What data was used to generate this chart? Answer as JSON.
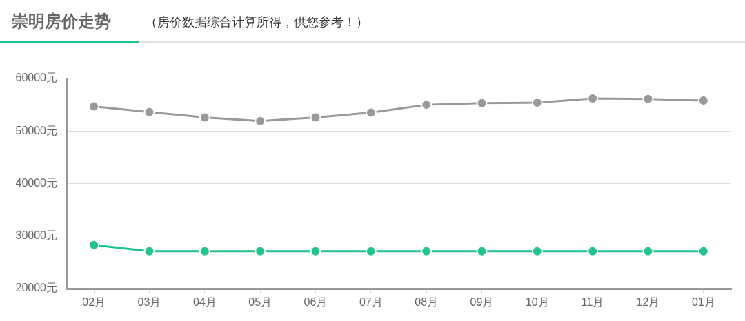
{
  "chart_data": {
    "type": "line",
    "title": "崇明房价走势",
    "subtitle": "（房价数据综合计算所得，供您参考！）",
    "categories": [
      "02月",
      "03月",
      "04月",
      "05月",
      "06月",
      "07月",
      "08月",
      "09月",
      "10月",
      "11月",
      "12月",
      "01月"
    ],
    "series": [
      {
        "color": "#999999",
        "values": [
          54700,
          53600,
          52600,
          51900,
          52600,
          53500,
          55000,
          55300,
          55400,
          56200,
          56100,
          55800
        ]
      },
      {
        "color": "#22c38e",
        "values": [
          28300,
          27100,
          27100,
          27100,
          27100,
          27100,
          27100,
          27100,
          27100,
          27100,
          27100,
          27100
        ]
      }
    ],
    "ylim": [
      20000,
      60000
    ],
    "yticks": [
      {
        "value": 20000,
        "label": "20000元"
      },
      {
        "value": 30000,
        "label": "30000元"
      },
      {
        "value": 40000,
        "label": "40000元"
      },
      {
        "value": 50000,
        "label": "50000元"
      },
      {
        "value": 60000,
        "label": "60000元"
      }
    ],
    "grid": "y",
    "marker": "circle",
    "line_style": "solid"
  }
}
